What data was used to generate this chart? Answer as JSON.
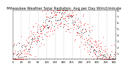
{
  "title": "Milwaukee Weather Solar Radiation  Avg per Day W/m2/minute",
  "title_fontsize": 3.8,
  "background_color": "#ffffff",
  "plot_bg_color": "#ffffff",
  "dot_color_red": "#ff0000",
  "dot_color_black": "#111111",
  "grid_color": "#bbbbbb",
  "ylim": [
    0,
    8
  ],
  "ylabel_fontsize": 3.2,
  "xlabel_fontsize": 2.8,
  "num_points": 365,
  "seed": 42,
  "ytick_vals": [
    1,
    2,
    3,
    4,
    5,
    6,
    7,
    8
  ],
  "ytick_labels": [
    "1",
    "2",
    "3",
    "4",
    "5",
    "6",
    "7",
    "8"
  ]
}
